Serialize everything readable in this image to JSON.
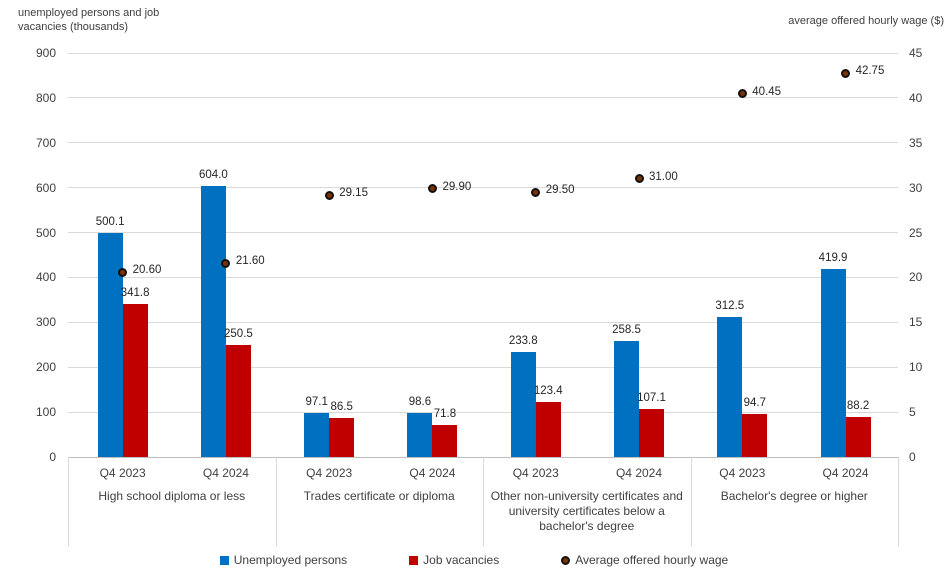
{
  "colors": {
    "unemployed_bar": "#0070c0",
    "vacancies_bar": "#c00000",
    "wage_marker_fill": "#7b3200",
    "wage_marker_border": "#111111",
    "gridline": "#d9d9d9",
    "axis_line": "#bfbfbf"
  },
  "chart_data": {
    "type": "bar",
    "subtype": "grouped bars with scatter point overlay (dual axis combo)",
    "title": "",
    "left_axis": {
      "label_line1": "unemployed persons and job",
      "label_line2": "vacancies (thousands)",
      "min": 0,
      "max": 900,
      "step": 100,
      "ticks": [
        900,
        800,
        700,
        600,
        500,
        400,
        300,
        200,
        100,
        0
      ]
    },
    "right_axis": {
      "label": "average offered hourly wage ($)",
      "min": 0,
      "max": 45,
      "step": 5,
      "ticks": [
        45,
        40,
        35,
        30,
        25,
        20,
        15,
        10,
        5,
        0
      ]
    },
    "grid": true,
    "legend_position": "bottom",
    "legend": [
      {
        "label": "Unemployed persons",
        "marker": "square",
        "color": "#0070c0"
      },
      {
        "label": "Job vacancies",
        "marker": "square",
        "color": "#c00000"
      },
      {
        "label": "Average offered hourly wage",
        "marker": "circle",
        "color": "#7b3200"
      }
    ],
    "series_names": [
      "Unemployed persons",
      "Job vacancies",
      "Average offered hourly wage"
    ],
    "groups": [
      {
        "label": "High school diploma or less",
        "periods": [
          {
            "label": "Q4 2023",
            "unemployed": 500.1,
            "unemployed_label": "500.1",
            "vacancies": 341.8,
            "vacancies_label": "341.8",
            "wage": 20.6,
            "wage_label": "20.60"
          },
          {
            "label": "Q4 2024",
            "unemployed": 604.0,
            "unemployed_label": "604.0",
            "vacancies": 250.5,
            "vacancies_label": "250.5",
            "wage": 21.6,
            "wage_label": "21.60"
          }
        ]
      },
      {
        "label": "Trades certificate or diploma",
        "periods": [
          {
            "label": "Q4 2023",
            "unemployed": 97.1,
            "unemployed_label": "97.1",
            "vacancies": 86.5,
            "vacancies_label": "86.5",
            "wage": 29.15,
            "wage_label": "29.15"
          },
          {
            "label": "Q4 2024",
            "unemployed": 98.6,
            "unemployed_label": "98.6",
            "vacancies": 71.8,
            "vacancies_label": "71.8",
            "wage": 29.9,
            "wage_label": "29.90"
          }
        ]
      },
      {
        "label": "Other non-university certificates and university certificates below a bachelor's degree",
        "periods": [
          {
            "label": "Q4 2023",
            "unemployed": 233.8,
            "unemployed_label": "233.8",
            "vacancies": 123.4,
            "vacancies_label": "123.4",
            "wage": 29.5,
            "wage_label": "29.50"
          },
          {
            "label": "Q4 2024",
            "unemployed": 258.5,
            "unemployed_label": "258.5",
            "vacancies": 107.1,
            "vacancies_label": "107.1",
            "wage": 31.0,
            "wage_label": "31.00"
          }
        ]
      },
      {
        "label": "Bachelor's degree or higher",
        "periods": [
          {
            "label": "Q4 2023",
            "unemployed": 312.5,
            "unemployed_label": "312.5",
            "vacancies": 94.7,
            "vacancies_label": "94.7",
            "wage": 40.45,
            "wage_label": "40.45"
          },
          {
            "label": "Q4 2024",
            "unemployed": 419.9,
            "unemployed_label": "419.9",
            "vacancies": 88.2,
            "vacancies_label": "88.2",
            "wage": 42.75,
            "wage_label": "42.75"
          }
        ]
      }
    ]
  }
}
